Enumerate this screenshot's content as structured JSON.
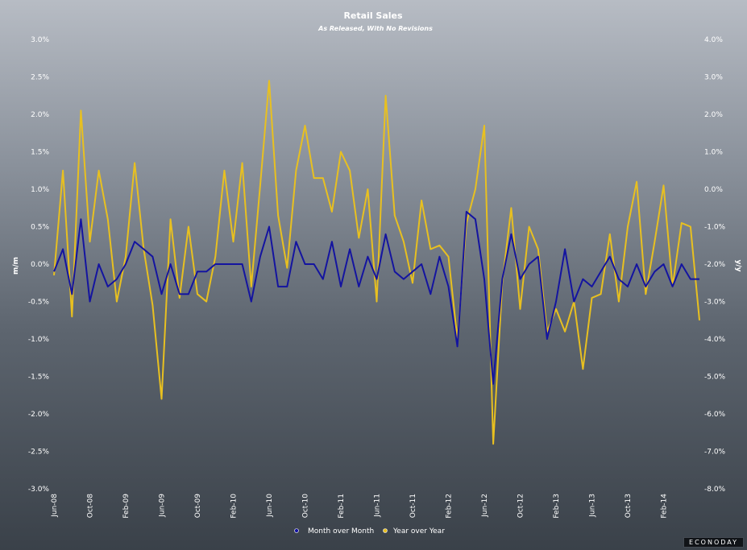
{
  "chart_data": {
    "type": "line",
    "title": "Retail Sales",
    "subtitle": "As Released, With No Revisions",
    "ylabel_left": "m/m",
    "ylabel_right": "y/y",
    "ylim_left": [
      -3.0,
      3.0
    ],
    "ylim_right": [
      -8.0,
      4.0
    ],
    "yticks_left": [
      "3.0%",
      "2.5%",
      "2.0%",
      "1.5%",
      "1.0%",
      "0.5%",
      "0.0%",
      "-0.5%",
      "-1.0%",
      "-1.5%",
      "-2.0%",
      "-2.5%",
      "-3.0%"
    ],
    "yticks_right": [
      "4.0%",
      "3.0%",
      "2.0%",
      "1.0%",
      "0.0%",
      "-1.0%",
      "-2.0%",
      "-3.0%",
      "-4.0%",
      "-5.0%",
      "-6.0%",
      "-7.0%",
      "-8.0%"
    ],
    "x_labels": [
      {
        "index": 0,
        "label": "Jun-08"
      },
      {
        "index": 4,
        "label": "Oct-08"
      },
      {
        "index": 8,
        "label": "Feb-09"
      },
      {
        "index": 12,
        "label": "Jun-09"
      },
      {
        "index": 16,
        "label": "Oct-09"
      },
      {
        "index": 20,
        "label": "Feb-10"
      },
      {
        "index": 24,
        "label": "Jun-10"
      },
      {
        "index": 28,
        "label": "Oct-10"
      },
      {
        "index": 32,
        "label": "Feb-11"
      },
      {
        "index": 36,
        "label": "Jun-11"
      },
      {
        "index": 40,
        "label": "Oct-11"
      },
      {
        "index": 44,
        "label": "Feb-12"
      },
      {
        "index": 48,
        "label": "Jun-12"
      },
      {
        "index": 52,
        "label": "Oct-12"
      },
      {
        "index": 56,
        "label": "Feb-13"
      },
      {
        "index": 60,
        "label": "Jun-13"
      },
      {
        "index": 64,
        "label": "Oct-13"
      },
      {
        "index": 68,
        "label": "Feb-14"
      }
    ],
    "series": [
      {
        "name": "Month over Month",
        "axis": "left",
        "color": "#1414a0",
        "values": [
          -0.1,
          0.2,
          -0.4,
          0.6,
          -0.5,
          0.0,
          -0.3,
          -0.2,
          0.0,
          0.3,
          0.2,
          0.1,
          -0.4,
          0.0,
          -0.4,
          -0.4,
          -0.1,
          -0.1,
          0.0,
          0.0,
          0.0,
          0.0,
          -0.5,
          0.1,
          0.5,
          -0.3,
          -0.3,
          0.3,
          0.0,
          0.0,
          -0.2,
          0.3,
          -0.3,
          0.2,
          -0.3,
          0.1,
          -0.2,
          0.4,
          -0.1,
          -0.2,
          -0.1,
          0.0,
          -0.4,
          0.1,
          -0.3,
          -1.1,
          0.7,
          0.6,
          -0.2,
          -1.6,
          -0.2,
          0.4,
          -0.2,
          0.0,
          0.1,
          -1.0,
          -0.5,
          0.2,
          -0.5,
          -0.2,
          -0.3,
          -0.1,
          0.1,
          -0.2,
          -0.3,
          0.0,
          -0.3,
          -0.1,
          0.0,
          -0.3,
          0.0,
          -0.2,
          -0.2
        ]
      },
      {
        "name": "Year over Year",
        "axis": "right",
        "color": "#e8c020",
        "values": [
          -2.3,
          0.5,
          -3.4,
          2.1,
          -1.4,
          0.5,
          -0.8,
          -3.0,
          -1.8,
          0.7,
          -1.6,
          -3.1,
          -5.6,
          -0.8,
          -2.9,
          -1.0,
          -2.8,
          -3.0,
          -1.8,
          0.5,
          -1.4,
          0.7,
          -2.6,
          0.1,
          2.9,
          -0.7,
          -2.1,
          0.5,
          1.7,
          0.3,
          0.3,
          -0.6,
          1.0,
          0.5,
          -1.3,
          0.0,
          -3.0,
          2.5,
          -0.7,
          -1.4,
          -2.5,
          -0.3,
          -1.6,
          -1.5,
          -1.8,
          -4.0,
          -0.9,
          0.0,
          1.7,
          -6.8,
          -2.5,
          -0.5,
          -3.2,
          -1.0,
          -1.6,
          -3.8,
          -3.2,
          -3.8,
          -3.0,
          -4.8,
          -2.9,
          -2.8,
          -1.2,
          -3.0,
          -1.0,
          0.2,
          -2.8,
          -1.4,
          0.1,
          -2.6,
          -0.9,
          -1.0,
          -3.5
        ]
      }
    ],
    "legend_position": "bottom-center",
    "grid": false
  },
  "branding": {
    "text": "ECONODAY"
  }
}
